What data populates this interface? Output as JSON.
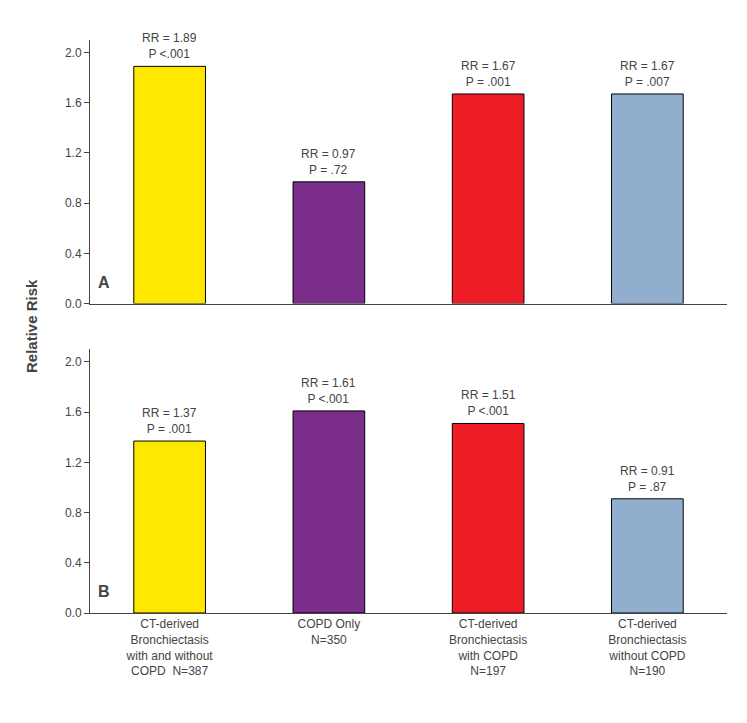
{
  "chart_data": [
    {
      "type": "bar",
      "title": "A",
      "ylabel": "Relative Risk",
      "categories": [
        null,
        null,
        null,
        null
      ],
      "values": [
        1.89,
        0.97,
        1.67,
        1.67
      ],
      "colors": [
        "#FFE800",
        "#7B2D8B",
        "#EE1C25",
        "#92AECF"
      ],
      "annotations": [
        "RR = 1.89\nP <.001",
        "RR = 0.97\nP = .72",
        "RR = 1.67\nP = .001",
        "RR = 1.67\nP = .007"
      ],
      "ylim": [
        0,
        2.1
      ],
      "yticks": [
        {
          "value": 0.0,
          "label": "0.0"
        },
        0.4,
        0.8,
        1.2,
        1.6,
        {
          "value": 2.0,
          "label": "2.0"
        }
      ],
      "grid": false,
      "tick_labels": "y"
    },
    {
      "type": "bar",
      "title": "B",
      "categories": [
        "CT-derived\nBronchiectasis\nwith and without\nCOPD  N=387",
        "COPD Only\nN=350",
        "CT-derived\nBronchiectasis\nwith COPD\nN=197",
        "CT-derived\nBronchiectasis\nwithout COPD\nN=190"
      ],
      "values": [
        1.37,
        1.61,
        1.51,
        0.91
      ],
      "colors": [
        "#FFE800",
        "#7B2D8B",
        "#EE1C25",
        "#92AECF"
      ],
      "annotations": [
        "RR = 1.37\nP = .001",
        "RR = 1.61\nP <.001",
        "RR = 1.51\nP <.001",
        "RR = 0.91\nP = .87"
      ],
      "ylim": [
        0,
        2.1
      ],
      "yticks": [
        {
          "value": 0.0,
          "label": "0.0"
        },
        0.4,
        0.8,
        1.2,
        1.6,
        {
          "value": 2.0,
          "label": "2.0"
        }
      ],
      "grid": false
    }
  ]
}
